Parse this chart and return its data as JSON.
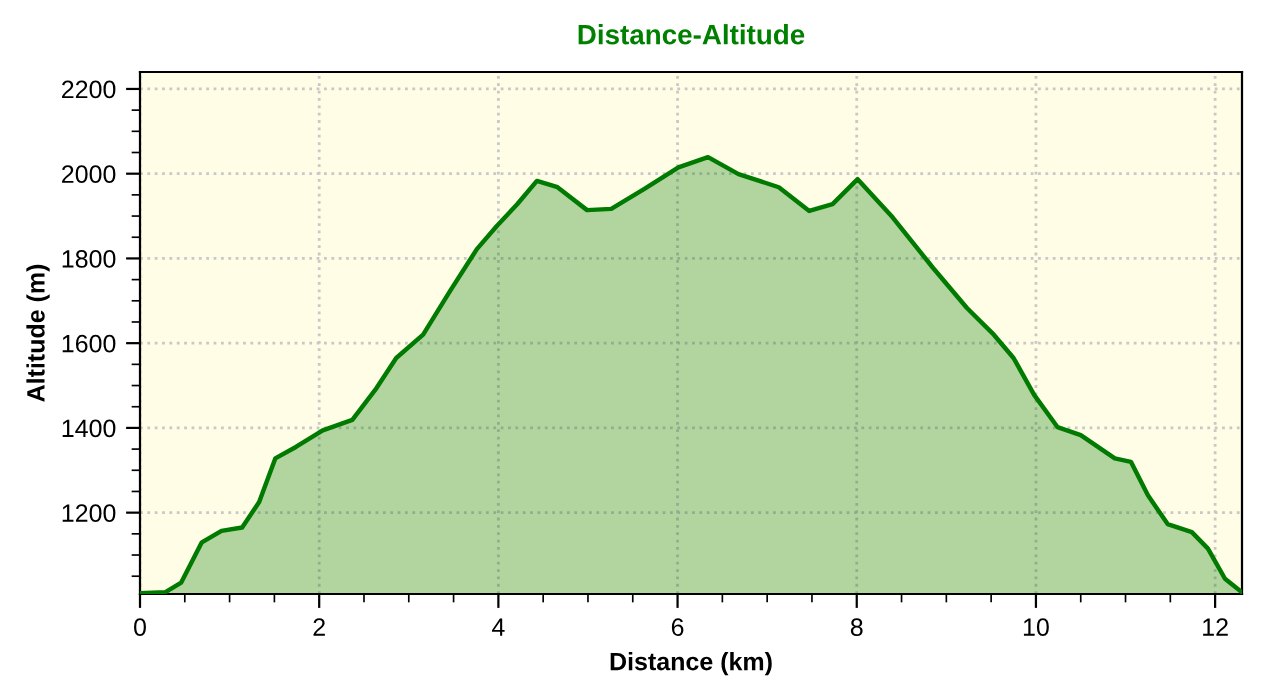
{
  "chart_data": {
    "type": "area",
    "title": "Distance-Altitude",
    "xlabel": "Distance (km)",
    "ylabel": "Altitude (m)",
    "series": [
      {
        "color": "#007a00",
        "x": [
          0,
          0.28,
          0.46,
          0.69,
          0.91,
          1.14,
          1.33,
          1.51,
          1.74,
          2.04,
          2.37,
          2.64,
          2.86,
          3.16,
          3.46,
          3.76,
          3.98,
          4.21,
          4.43,
          4.66,
          4.99,
          5.26,
          5.63,
          6.01,
          6.34,
          6.68,
          7.13,
          7.47,
          7.73,
          8.01,
          8.4,
          8.85,
          9.23,
          9.53,
          9.75,
          9.98,
          10.24,
          10.5,
          10.88,
          11.06,
          11.25,
          11.47,
          11.74,
          11.92,
          12.11,
          12.3
        ],
        "values": [
          1010,
          1012,
          1035,
          1130,
          1157,
          1165,
          1225,
          1328,
          1355,
          1394,
          1419,
          1494,
          1565,
          1620,
          1723,
          1822,
          1876,
          1928,
          1983,
          1968,
          1914,
          1917,
          1964,
          2015,
          2039,
          1999,
          1968,
          1912,
          1928,
          1987,
          1897,
          1778,
          1683,
          1620,
          1565,
          1478,
          1402,
          1383,
          1328,
          1320,
          1241,
          1173,
          1154,
          1115,
          1044,
          1012
        ]
      }
    ],
    "xlim": [
      0,
      12.3
    ],
    "ylim": [
      1008,
      2240
    ],
    "xticks": [
      0,
      2,
      4,
      6,
      8,
      10,
      12,
      {
        "value": 0.5,
        "label": null
      },
      {
        "value": 1,
        "label": null
      },
      {
        "value": 1.5,
        "label": null
      },
      {
        "value": 2.5,
        "label": null
      },
      {
        "value": 3,
        "label": null
      },
      {
        "value": 3.5,
        "label": null
      },
      {
        "value": 4.5,
        "label": null
      },
      {
        "value": 5,
        "label": null
      },
      {
        "value": 5.5,
        "label": null
      },
      {
        "value": 6.5,
        "label": null
      },
      {
        "value": 7,
        "label": null
      },
      {
        "value": 7.5,
        "label": null
      },
      {
        "value": 8.5,
        "label": null
      },
      {
        "value": 9,
        "label": null
      },
      {
        "value": 9.5,
        "label": null
      },
      {
        "value": 10.5,
        "label": null
      },
      {
        "value": 11,
        "label": null
      },
      {
        "value": 11.5,
        "label": null
      }
    ],
    "yticks": [
      1200,
      1400,
      1600,
      1800,
      2000,
      2200,
      {
        "value": 1050,
        "label": null
      },
      {
        "value": 1100,
        "label": null
      },
      {
        "value": 1150,
        "label": null
      },
      {
        "value": 1250,
        "label": null
      },
      {
        "value": 1300,
        "label": null
      },
      {
        "value": 1350,
        "label": null
      },
      {
        "value": 1450,
        "label": null
      },
      {
        "value": 1500,
        "label": null
      },
      {
        "value": 1550,
        "label": null
      },
      {
        "value": 1650,
        "label": null
      },
      {
        "value": 1700,
        "label": null
      },
      {
        "value": 1750,
        "label": null
      },
      {
        "value": 1850,
        "label": null
      },
      {
        "value": 1900,
        "label": null
      },
      {
        "value": 1950,
        "label": null
      },
      {
        "value": 2050,
        "label": null
      },
      {
        "value": 2100,
        "label": null
      },
      {
        "value": 2150,
        "label": null
      }
    ],
    "grid": true,
    "line_style": "solid",
    "marker": "none"
  }
}
